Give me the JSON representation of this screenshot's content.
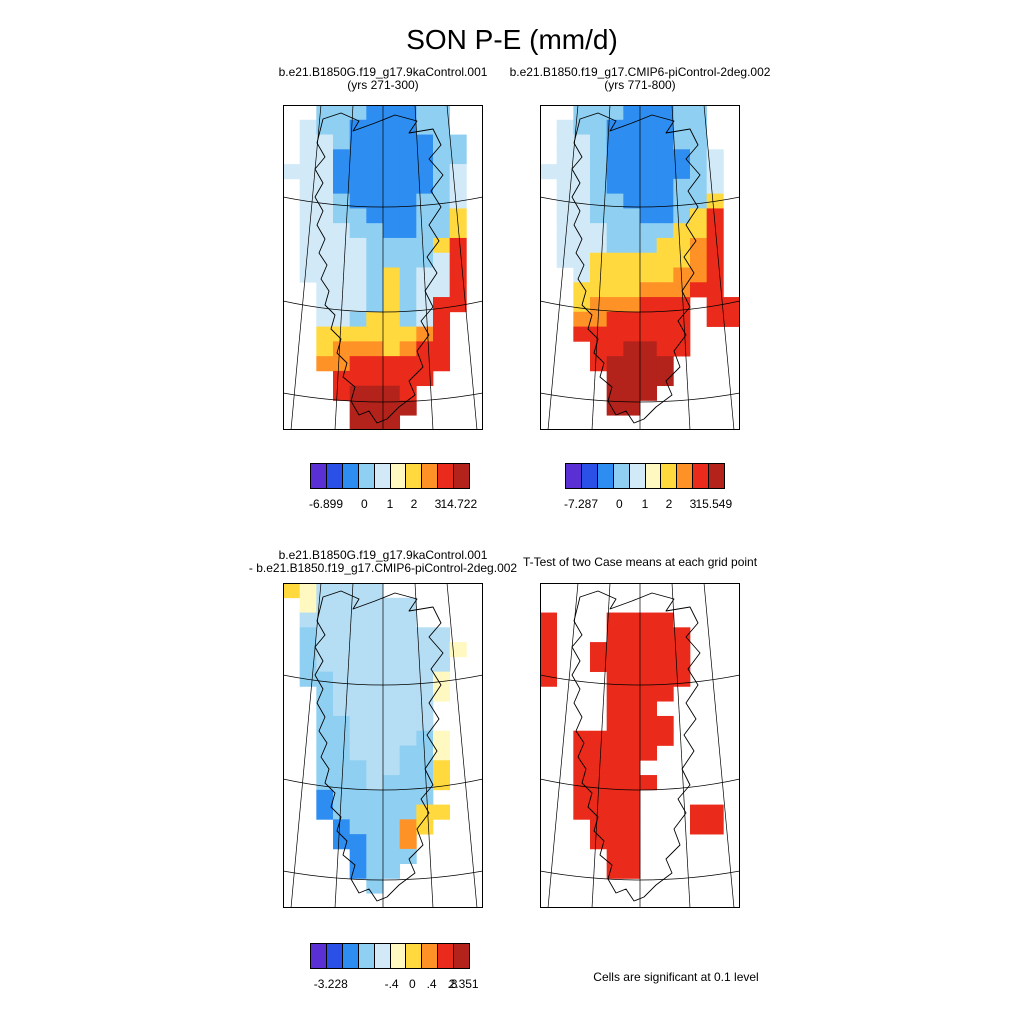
{
  "title": "SON P-E (mm/d)",
  "note_significance": "Cells are significant at 0.1 level",
  "palette": {
    "B": "#2e8df0",
    "L": "#8fd0f2",
    "p": "#d2eaf8",
    "q": "#b5ddf3",
    "c": "#fff8c0",
    "Y": "#ffd93e",
    "O": "#ff9226",
    "R": "#ea2a1a",
    "D": "#b3231b"
  },
  "colorbar_colors": [
    "#5a2fd4",
    "#2b50e8",
    "#2e8df0",
    "#8fd0f2",
    "#d2eaf8",
    "#fff8c0",
    "#ffd93e",
    "#ff9226",
    "#ea2a1a",
    "#b3231b"
  ],
  "chart_data": [
    {
      "type": "heatmap",
      "id": "case1",
      "title": "b.e21.B1850G.f19_g17.9kaControl.001",
      "subtitle": "(yrs 271-300)",
      "colorbar": {
        "min": -6.899,
        "max": 14.722,
        "tick_labels": [
          "-6.899",
          "0",
          "1",
          "2",
          "3",
          "14.722"
        ],
        "tick_pos": [
          0.1,
          0.34,
          0.5,
          0.65,
          0.8,
          0.93
        ]
      },
      "grid": [
        "..LLLBBBLL..",
        ".pLLBBBBLL..",
        ".ppLBBBBBLL.",
        ".ppBBBBBBLL.",
        "pppBBBBBBLp.",
        ".ppBBBBBBLp.",
        ".ppLBBBBLLp.",
        ".ppLLBBBLLY.",
        ".pppLLBBLLY.",
        ".ppppLLLLYR.",
        ".ppppLLLLpR.",
        ".ppppLYLppR.",
        "..pppLYLppR.",
        "..pppLYLpRR.",
        "..ppLYYLpR..",
        "..YYYYYYOR..",
        "..YOOOYORR..",
        "..OORRRRRR..",
        "...RRRRRR...",
        "...RDDDR....",
        "....DDDD....",
        "....DDD....."
      ]
    },
    {
      "type": "heatmap",
      "id": "case2",
      "title": "b.e21.B1850.f19_g17.CMIP6-piControl-2deg.002",
      "subtitle": "(yrs 771-800)",
      "colorbar": {
        "min": -7.287,
        "max": 15.549,
        "tick_labels": [
          "-7.287",
          "0",
          "1",
          "2",
          "3",
          "15.549"
        ],
        "tick_pos": [
          0.1,
          0.34,
          0.5,
          0.65,
          0.8,
          0.93
        ]
      },
      "grid": [
        "..LLLBBBLL..",
        ".pLLBBBBLL..",
        ".ppLBBBBLL..",
        ".ppLBBBBBLp.",
        "pppLBBBBBLp.",
        ".ppLBBBBLLp.",
        ".ppLLBBBLLY.",
        ".ppLLLBBLYR.",
        ".pppLLLLYYR.",
        ".pppLLLYYOR.",
        ".ppYYYYYYOR.",
        "..pYYYYYOOR.",
        "..YYYYOOORR.",
        "..YOOORRR.RR",
        "..OORRRRR.RR",
        "..RRRRRRR...",
        "...RRDDRR...",
        "...RDDDD....",
        "....DDDD....",
        "....DDD.....",
        "....DD......",
        "............"
      ]
    },
    {
      "type": "heatmap",
      "id": "difference",
      "title": "b.e21.B1850G.f19_g17.9kaControl.001",
      "subtitle": "- b.e21.B1850.f19_g17.CMIP6-piControl-2deg.002",
      "colorbar": {
        "min": -3.228,
        "max": 2.351,
        "tick_labels": [
          "-3.228",
          "-.4",
          "0",
          ".4",
          ".8",
          "2.351"
        ],
        "tick_pos": [
          0.13,
          0.51,
          0.64,
          0.76,
          0.89,
          0.96
        ]
      },
      "grid": [
        "Ycqqqq......",
        ".cqqqqqq....",
        ".qqqqqqq....",
        ".Lqqqqqqqq..",
        ".Lqqqqqqqqc.",
        ".Lqqqqqqqq..",
        ".LLqqqqqqc..",
        "..Lqqqqqqc..",
        "..Lqqqqqq...",
        "..LLqqqqq...",
        "..LLqqqqLc..",
        "..LLqqqLLc..",
        "..LLLqqLLY..",
        "..LLLqLLLY..",
        "..BLLLLLL...",
        "..BLLLLLYY..",
        "...BLLLOY...",
        "...BBLLO....",
        "....BLLL....",
        "....BLL.....",
        ".....L......",
        "............"
      ]
    },
    {
      "type": "heatmap",
      "id": "ttest",
      "title": "T-Test of two Case means at each grid point",
      "note": "Cells are significant at 0.1 level",
      "grid": [
        "............",
        "............",
        "R...RRRR....",
        "R...RRRRR...",
        "R..RRRRRR...",
        "R..RRRRRR...",
        "R...RRRRR...",
        "....RRRR....",
        "....RRR.....",
        "....RRRR....",
        "..RRRRRR....",
        "..RRRRR.....",
        "..RRRR......",
        "..RRRRR.....",
        "..RRRR......",
        "..RRRR...RR.",
        "...RRR...RR.",
        "...RRR......",
        "....RR......",
        "....RR......",
        "............",
        "............"
      ]
    }
  ]
}
